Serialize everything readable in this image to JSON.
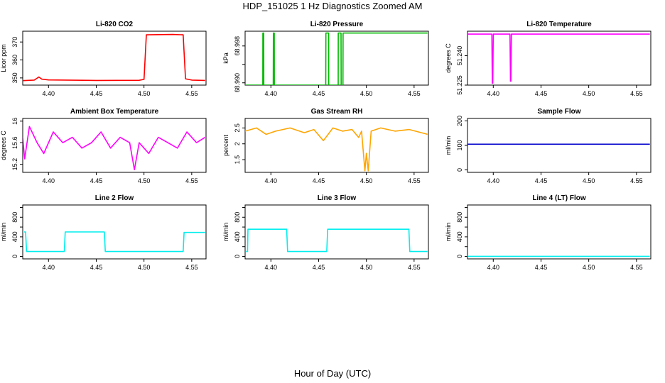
{
  "figure": {
    "title": "HDP_151025  1 Hz Diagnostics Zoomed AM",
    "xlabel": "Hour of Day (UTC)"
  },
  "chart_data": [
    {
      "id": "co2",
      "type": "line",
      "title": "Li-820 CO2",
      "ylabel": "Licor ppm",
      "xlim": [
        4.373,
        4.565
      ],
      "ylim": [
        346,
        376
      ],
      "x_ticks": [
        4.4,
        4.45,
        4.5,
        4.55
      ],
      "y_ticks": [
        350,
        360,
        370
      ],
      "color": "#ff0000",
      "series": [
        {
          "x": [
            4.373,
            4.385,
            4.39,
            4.393,
            4.4,
            4.45,
            4.495,
            4.5,
            4.5025,
            4.53,
            4.541,
            4.5435,
            4.55,
            4.564
          ],
          "y": [
            348.5,
            348.8,
            350.5,
            349.3,
            348.9,
            348.6,
            348.7,
            349.2,
            374.0,
            374.2,
            374.0,
            349.5,
            348.8,
            348.6
          ]
        }
      ]
    },
    {
      "id": "pressure",
      "type": "line",
      "title": "Li-820 Pressure",
      "ylabel": "kPa",
      "xlim": [
        4.373,
        4.565
      ],
      "ylim": [
        68.9895,
        69.0012
      ],
      "x_ticks": [
        4.4,
        4.45,
        4.5,
        4.55
      ],
      "y_ticks": [
        68.99,
        68.994,
        68.998
      ],
      "y_tick_labels": [
        "68.990",
        "",
        "68.998"
      ],
      "color": "#00bb00",
      "series": [
        {
          "x": [
            4.373,
            4.3915,
            4.3916,
            4.3925,
            4.3926,
            4.4025,
            4.4026,
            4.4035,
            4.4036,
            4.4575,
            4.4576,
            4.4605,
            4.4606,
            4.4705,
            4.4706,
            4.4735,
            4.4736,
            4.4755,
            4.4756,
            4.4775,
            4.4776,
            4.564
          ],
          "y": [
            68.9895,
            68.9895,
            69.0008,
            69.0008,
            68.9895,
            68.9895,
            69.0008,
            69.0008,
            68.9895,
            68.9895,
            69.0008,
            69.0008,
            68.9895,
            68.9895,
            69.0008,
            69.0008,
            68.9895,
            68.9895,
            69.0008,
            69.0008,
            69.0008,
            69.0008
          ]
        }
      ]
    },
    {
      "id": "temperature",
      "type": "line",
      "title": "Li-820 Temperature",
      "ylabel": "degrees C",
      "xlim": [
        4.373,
        4.565
      ],
      "ylim": [
        51.225,
        51.2525
      ],
      "x_ticks": [
        4.4,
        4.45,
        4.5,
        4.55
      ],
      "y_ticks": [
        51.225,
        51.24
      ],
      "y_tick_labels": [
        "51.225",
        "51.240"
      ],
      "color": "#ff00ff",
      "series": [
        {
          "x": [
            4.373,
            4.3985,
            4.399,
            4.3995,
            4.4,
            4.4175,
            4.418,
            4.4185,
            4.419,
            4.564
          ],
          "y": [
            51.251,
            51.251,
            51.226,
            51.226,
            51.251,
            51.251,
            51.227,
            51.227,
            51.251,
            51.251
          ]
        }
      ]
    },
    {
      "id": "ambient",
      "type": "line",
      "title": "Ambient Box Temperature",
      "ylabel": "degrees C",
      "xlim": [
        4.373,
        4.565
      ],
      "ylim": [
        15.05,
        16.05
      ],
      "x_ticks": [
        4.4,
        4.45,
        4.5,
        4.55
      ],
      "y_ticks": [
        15.2,
        15.6,
        16.0
      ],
      "color": "#ff00ff",
      "series": [
        {
          "x": [
            4.373,
            4.375,
            4.38,
            4.388,
            4.395,
            4.405,
            4.415,
            4.425,
            4.435,
            4.445,
            4.455,
            4.465,
            4.475,
            4.485,
            4.49,
            4.495,
            4.505,
            4.515,
            4.525,
            4.535,
            4.545,
            4.555,
            4.564
          ],
          "y": [
            15.7,
            15.3,
            15.9,
            15.6,
            15.4,
            15.8,
            15.6,
            15.7,
            15.5,
            15.6,
            15.8,
            15.5,
            15.7,
            15.6,
            15.1,
            15.6,
            15.4,
            15.7,
            15.6,
            15.5,
            15.8,
            15.6,
            15.7
          ]
        }
      ]
    },
    {
      "id": "rh",
      "type": "line",
      "title": "Gas Stream RH",
      "ylabel": "percent",
      "xlim": [
        4.373,
        4.565
      ],
      "ylim": [
        1.1,
        2.8
      ],
      "x_ticks": [
        4.4,
        4.45,
        4.5,
        4.55
      ],
      "y_ticks": [
        1.5,
        2.0,
        2.5
      ],
      "color": "#ffa500",
      "series": [
        {
          "x": [
            4.373,
            4.385,
            4.395,
            4.405,
            4.42,
            4.435,
            4.445,
            4.455,
            4.465,
            4.475,
            4.485,
            4.492,
            4.495,
            4.4985,
            4.5,
            4.502,
            4.505,
            4.515,
            4.53,
            4.545,
            4.564
          ],
          "y": [
            2.4,
            2.5,
            2.3,
            2.4,
            2.5,
            2.35,
            2.45,
            2.1,
            2.5,
            2.4,
            2.45,
            2.2,
            2.4,
            1.15,
            1.7,
            1.15,
            2.4,
            2.5,
            2.4,
            2.45,
            2.3
          ]
        }
      ]
    },
    {
      "id": "sample_flow",
      "type": "line",
      "title": "Sample Flow",
      "ylabel": "ml/min",
      "xlim": [
        4.373,
        4.565
      ],
      "ylim": [
        -10,
        210
      ],
      "x_ticks": [
        4.4,
        4.45,
        4.5,
        4.55
      ],
      "y_ticks": [
        0,
        100,
        200
      ],
      "color": "#0000cc",
      "series": [
        {
          "x": [
            4.373,
            4.564
          ],
          "y": [
            105,
            105
          ]
        }
      ]
    },
    {
      "id": "line2",
      "type": "line",
      "title": "Line 2 Flow",
      "ylabel": "ml/min",
      "xlim": [
        4.373,
        4.565
      ],
      "ylim": [
        -50,
        1050
      ],
      "x_ticks": [
        4.4,
        4.45,
        4.5,
        4.55
      ],
      "y_ticks": [
        0,
        200,
        400,
        600,
        800,
        1000
      ],
      "y_tick_labels": [
        "0",
        "",
        "400",
        "",
        "800",
        ""
      ],
      "color": "#00eeee",
      "series": [
        {
          "x": [
            4.3745,
            4.376,
            4.377,
            4.4165,
            4.4175,
            4.4585,
            4.4595,
            4.541,
            4.542,
            4.564
          ],
          "y": [
            500,
            500,
            100,
            100,
            500,
            500,
            100,
            100,
            490,
            490
          ]
        }
      ]
    },
    {
      "id": "line3",
      "type": "line",
      "title": "Line 3 Flow",
      "ylabel": "ml/min",
      "xlim": [
        4.373,
        4.565
      ],
      "ylim": [
        -50,
        1050
      ],
      "x_ticks": [
        4.4,
        4.45,
        4.5,
        4.55
      ],
      "y_ticks": [
        0,
        200,
        400,
        600,
        800,
        1000
      ],
      "y_tick_labels": [
        "0",
        "",
        "400",
        "",
        "800",
        ""
      ],
      "color": "#00eeee",
      "series": [
        {
          "x": [
            4.374,
            4.3755,
            4.376,
            4.4165,
            4.4175,
            4.4585,
            4.4595,
            4.5445,
            4.5455,
            4.564
          ],
          "y": [
            100,
            100,
            555,
            555,
            100,
            100,
            555,
            555,
            100,
            100
          ]
        }
      ]
    },
    {
      "id": "line4",
      "type": "line",
      "title": "Line 4 (LT) Flow",
      "ylabel": "ml/min",
      "xlim": [
        4.373,
        4.565
      ],
      "ylim": [
        -50,
        1050
      ],
      "x_ticks": [
        4.4,
        4.45,
        4.5,
        4.55
      ],
      "y_ticks": [
        0,
        200,
        400,
        600,
        800,
        1000
      ],
      "y_tick_labels": [
        "0",
        "",
        "400",
        "",
        "800",
        ""
      ],
      "color": "#00eeee",
      "series": [
        {
          "x": [
            4.373,
            4.564
          ],
          "y": [
            2,
            2
          ]
        }
      ]
    }
  ]
}
